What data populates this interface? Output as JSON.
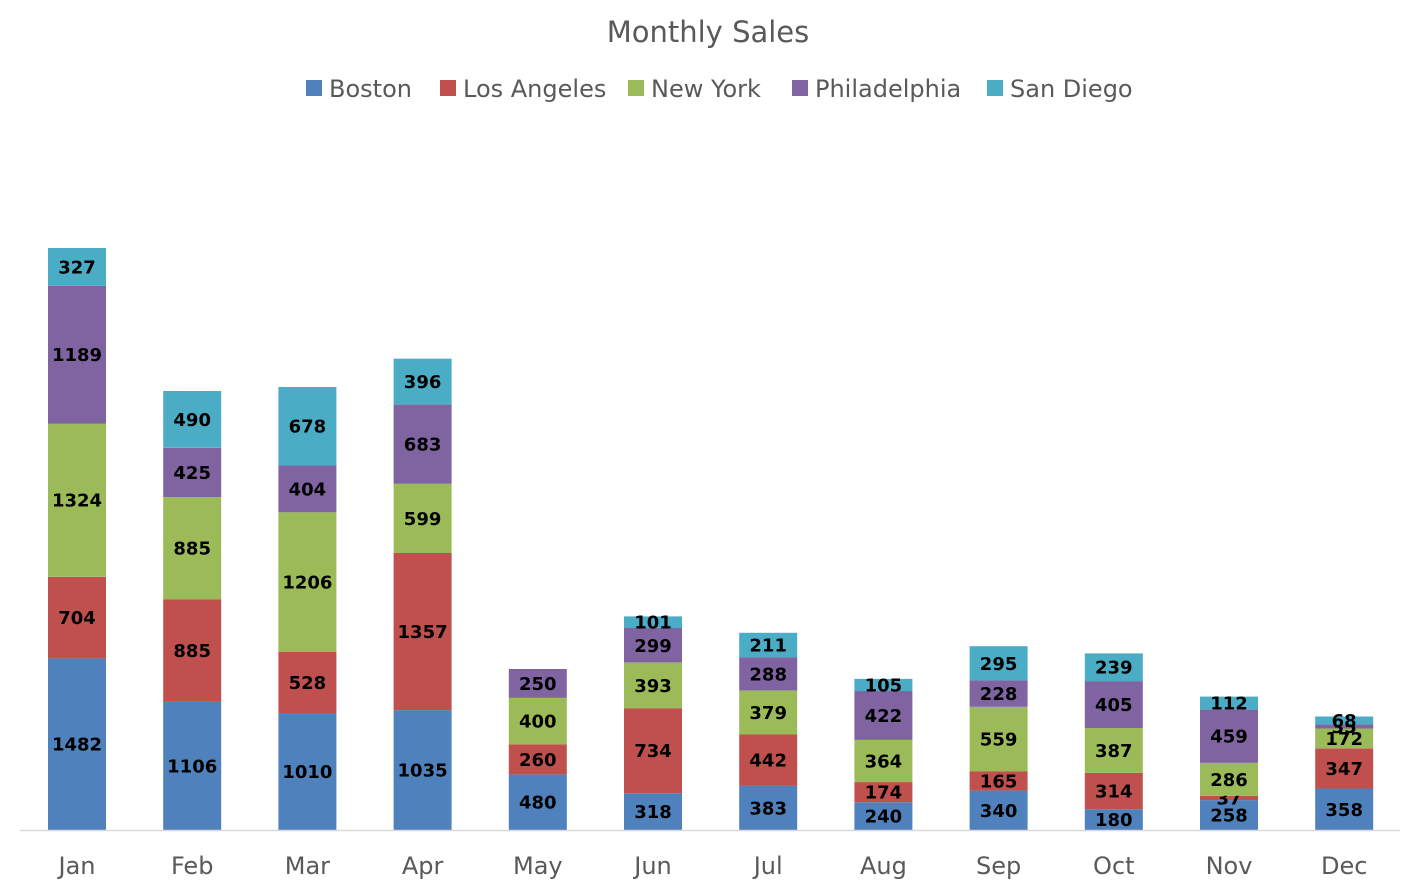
{
  "chart_data": {
    "type": "bar",
    "stacked": true,
    "title": "Monthly Sales",
    "xlabel": "",
    "ylabel": "",
    "legend_position": "top",
    "grid": false,
    "ylim": [
      0,
      5200
    ],
    "categories": [
      "Jan",
      "Feb",
      "Mar",
      "Apr",
      "May",
      "Jun",
      "Jul",
      "Aug",
      "Sep",
      "Oct",
      "Nov",
      "Dec"
    ],
    "series": [
      {
        "name": "Boston",
        "color": "#4f81bd",
        "values": [
          1482,
          1106,
          1010,
          1035,
          480,
          318,
          383,
          240,
          340,
          180,
          258,
          358
        ]
      },
      {
        "name": "Los Angeles",
        "color": "#c0504d",
        "values": [
          704,
          885,
          528,
          1357,
          260,
          734,
          442,
          174,
          165,
          314,
          37,
          347
        ]
      },
      {
        "name": "New York",
        "color": "#9bbb59",
        "values": [
          1324,
          885,
          1206,
          599,
          400,
          393,
          379,
          364,
          559,
          387,
          286,
          172
        ]
      },
      {
        "name": "Philadelphia",
        "color": "#8064a2",
        "values": [
          1189,
          425,
          404,
          683,
          250,
          299,
          288,
          422,
          228,
          405,
          459,
          35
        ]
      },
      {
        "name": "San Diego",
        "color": "#4bacc6",
        "values": [
          327,
          490,
          678,
          396,
          null,
          101,
          211,
          105,
          295,
          239,
          112,
          68
        ]
      }
    ]
  }
}
